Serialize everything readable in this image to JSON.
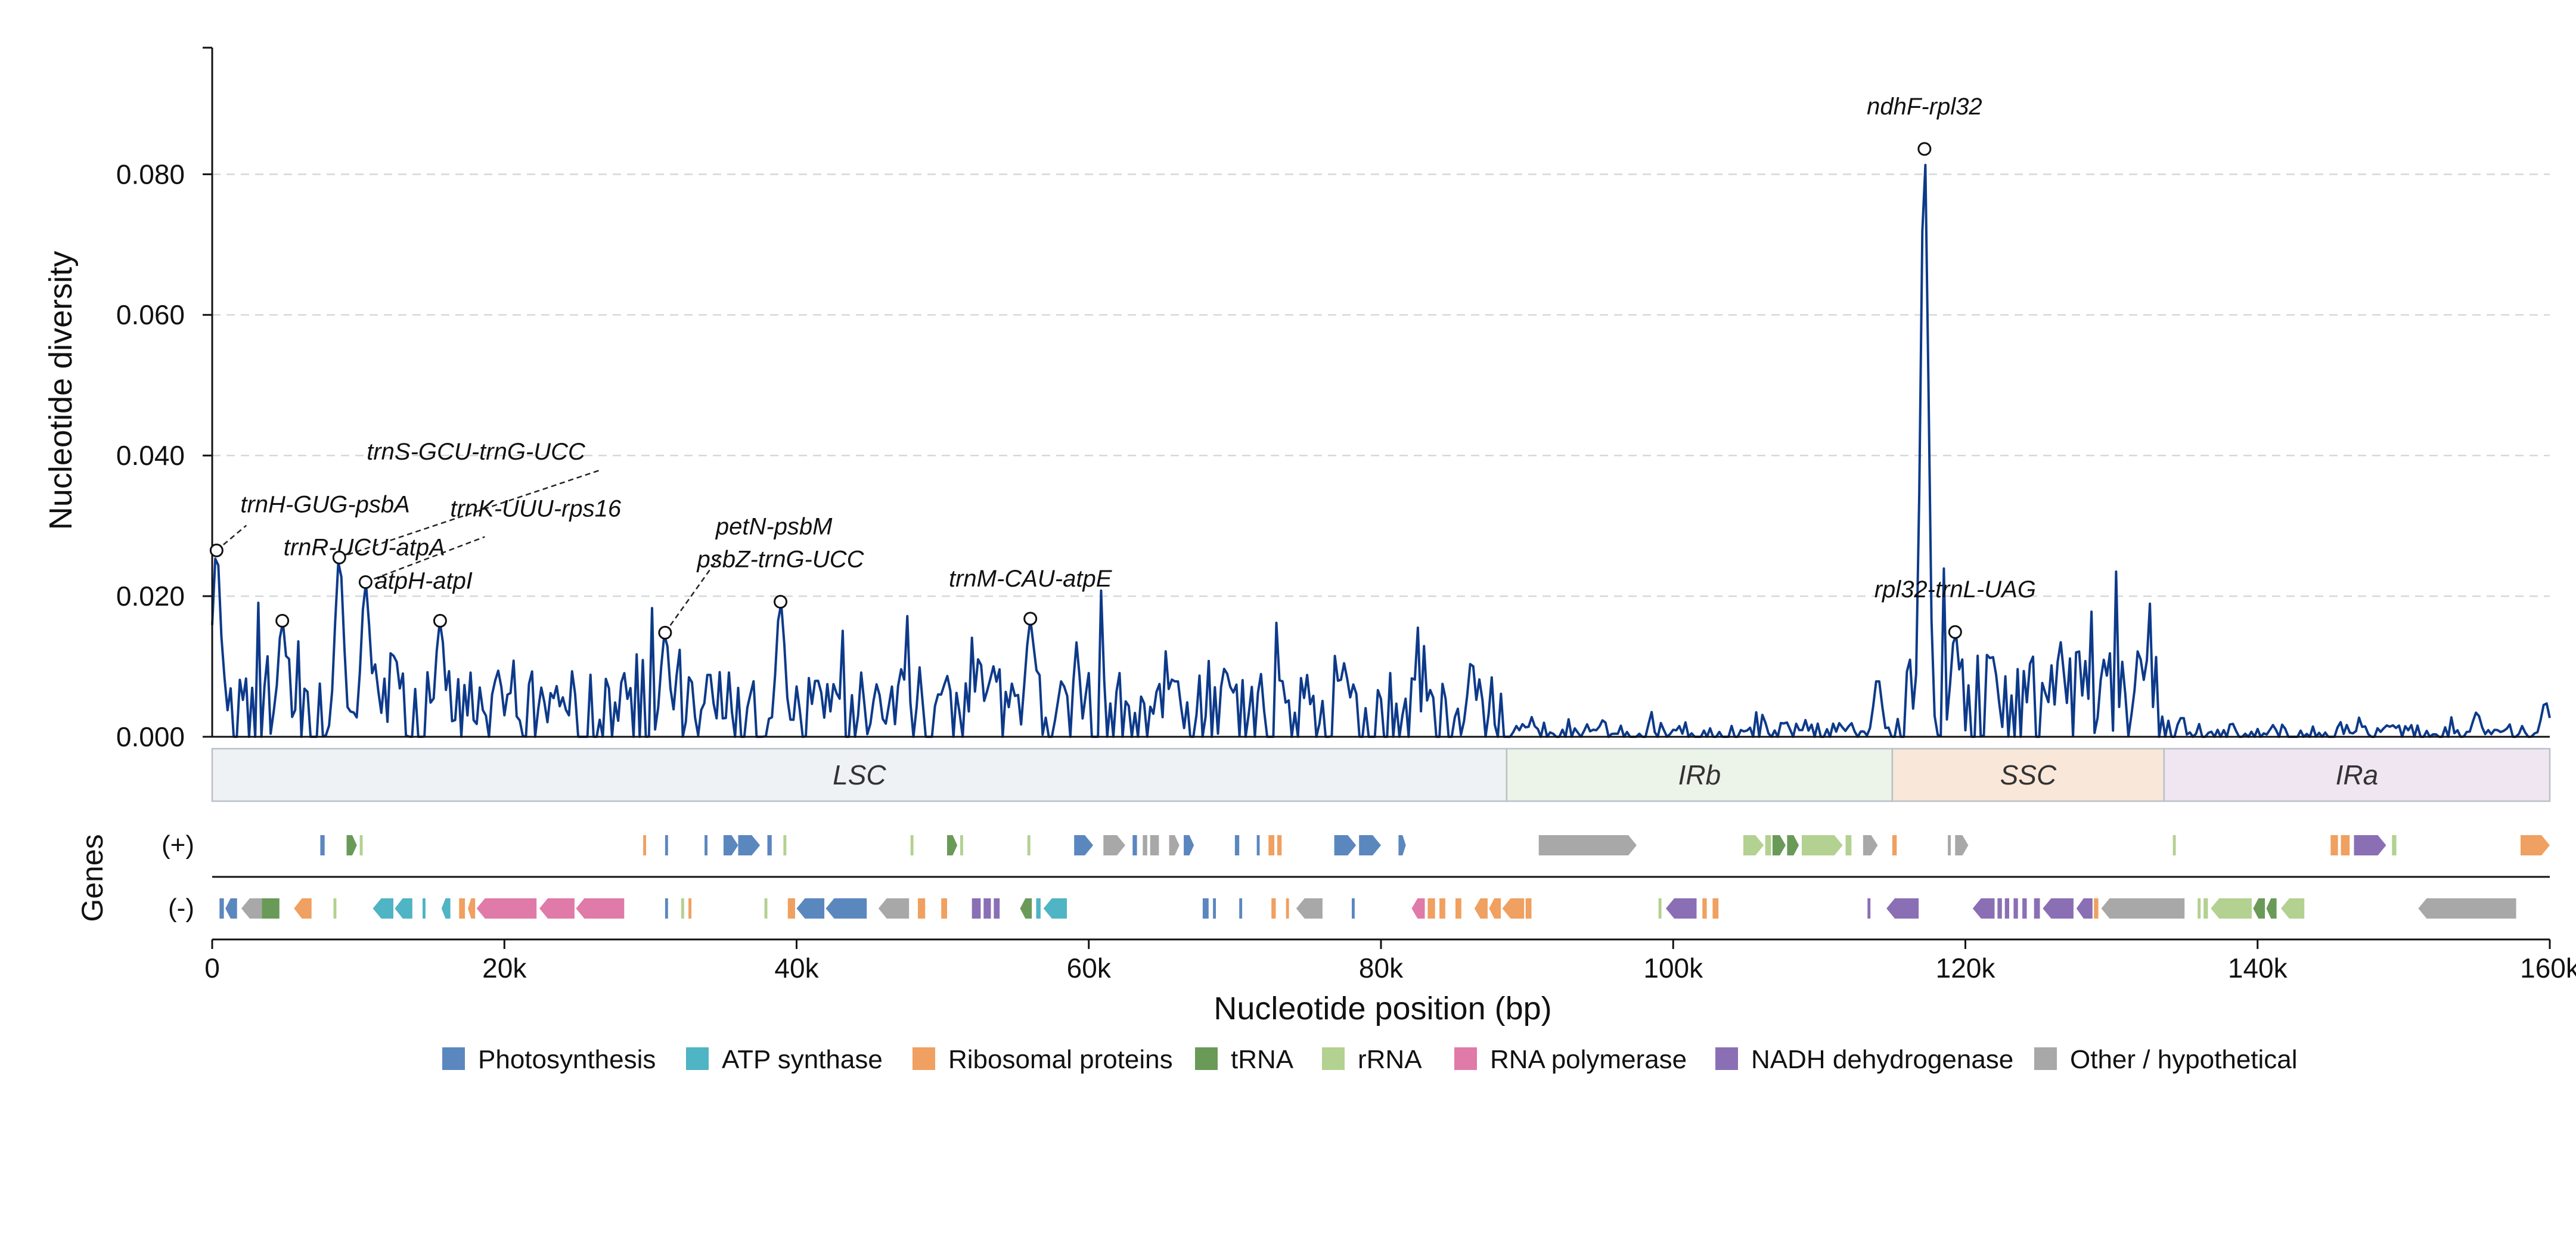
{
  "chart_data": {
    "type": "line",
    "xlabel": "Nucleotide position (bp)",
    "ylabel": "Nucleotide diversity",
    "genes_label": "Genes",
    "strand_labels": [
      "(+)",
      "(-)"
    ],
    "xlim": [
      0,
      160000
    ],
    "ylim": [
      0,
      0.098
    ],
    "x_ticks": [
      0,
      20000,
      40000,
      60000,
      80000,
      100000,
      120000,
      140000,
      160000
    ],
    "x_tick_labels": [
      "0",
      "20k",
      "40k",
      "60k",
      "80k",
      "100k",
      "120k",
      "140k",
      "160k"
    ],
    "y_ticks": [
      0,
      0.02,
      0.04,
      0.06,
      0.08
    ],
    "y_tick_labels": [
      "0.000",
      "0.020",
      "0.040",
      "0.060",
      "0.080"
    ],
    "grid": "horizontal dashed",
    "line_color": "#0d3a8a",
    "peaks": [
      {
        "label": "trnH-GUG-psbA",
        "x": 300,
        "y": 0.0265
      },
      {
        "label": "trnR-UCU-atpA",
        "x": 4800,
        "y": 0.0165
      },
      {
        "label": "trnS-GCU-trnG-UCC",
        "x": 8700,
        "y": 0.0255
      },
      {
        "label": "trnK-UUU-rps16",
        "x": 10500,
        "y": 0.022
      },
      {
        "label": "atpH-atpI",
        "x": 15600,
        "y": 0.0165
      },
      {
        "label": "petN-psbM",
        "x": 31000,
        "y": 0.0148
      },
      {
        "label": "psbZ-trnG-UCC",
        "x": 38900,
        "y": 0.0192
      },
      {
        "label": "trnM-CAU-atpE",
        "x": 56000,
        "y": 0.0168
      },
      {
        "label": "ndhF-rpl32",
        "x": 117200,
        "y": 0.0836
      },
      {
        "label": "rpl32-trnL-UAG",
        "x": 119300,
        "y": 0.0149
      }
    ],
    "regions": [
      {
        "name": "LSC",
        "start": 0,
        "end": 88600,
        "color": "#eef2f5"
      },
      {
        "name": "IRb",
        "start": 88600,
        "end": 115000,
        "color": "#ecf3e8"
      },
      {
        "name": "SSC",
        "start": 115000,
        "end": 133600,
        "color": "#f9e8d9"
      },
      {
        "name": "IRa",
        "start": 133600,
        "end": 160000,
        "color": "#f0e6f2"
      }
    ],
    "legend": [
      {
        "label": "Photosynthesis",
        "color": "#5b87bf"
      },
      {
        "label": "ATP synthase",
        "color": "#4fb4c4"
      },
      {
        "label": "Ribosomal proteins",
        "color": "#f0a060"
      },
      {
        "label": "tRNA",
        "color": "#6a9a58"
      },
      {
        "label": "rRNA",
        "color": "#b3d190"
      },
      {
        "label": "RNA polymerase",
        "color": "#e07aa8"
      },
      {
        "label": "NADH dehydrogenase",
        "color": "#8a6fb5"
      },
      {
        "label": "Other / hypothetical",
        "color": "#a8a8a8"
      }
    ],
    "genes_plus": [
      {
        "start": 7400,
        "end": 7700,
        "cat": 0,
        "arrow": false
      },
      {
        "start": 9200,
        "end": 9900,
        "cat": 3,
        "arrow": true
      },
      {
        "start": 10100,
        "end": 10300,
        "cat": 4,
        "arrow": false
      },
      {
        "start": 29500,
        "end": 29700,
        "cat": 2,
        "arrow": false
      },
      {
        "start": 31000,
        "end": 31200,
        "cat": 0,
        "arrow": false
      },
      {
        "start": 33700,
        "end": 33900,
        "cat": 0,
        "arrow": false
      },
      {
        "start": 35000,
        "end": 36000,
        "cat": 0,
        "arrow": true
      },
      {
        "start": 36000,
        "end": 37500,
        "cat": 0,
        "arrow": true
      },
      {
        "start": 38000,
        "end": 38300,
        "cat": 0,
        "arrow": false
      },
      {
        "start": 39100,
        "end": 39300,
        "cat": 4,
        "arrow": false
      },
      {
        "start": 47800,
        "end": 48000,
        "cat": 4,
        "arrow": false
      },
      {
        "start": 50300,
        "end": 51000,
        "cat": 3,
        "arrow": true
      },
      {
        "start": 51200,
        "end": 51400,
        "cat": 4,
        "arrow": false
      },
      {
        "start": 55800,
        "end": 56000,
        "cat": 4,
        "arrow": false
      },
      {
        "start": 59000,
        "end": 60300,
        "cat": 0,
        "arrow": true
      },
      {
        "start": 61000,
        "end": 62500,
        "cat": 7,
        "arrow": true
      },
      {
        "start": 63000,
        "end": 63300,
        "cat": 0,
        "arrow": false
      },
      {
        "start": 63700,
        "end": 64000,
        "cat": 7,
        "arrow": false
      },
      {
        "start": 64200,
        "end": 64800,
        "cat": 7,
        "arrow": false
      },
      {
        "start": 65500,
        "end": 66200,
        "cat": 7,
        "arrow": true
      },
      {
        "start": 66500,
        "end": 67200,
        "cat": 0,
        "arrow": true
      },
      {
        "start": 70000,
        "end": 70300,
        "cat": 0,
        "arrow": false
      },
      {
        "start": 71500,
        "end": 71700,
        "cat": 0,
        "arrow": false
      },
      {
        "start": 72300,
        "end": 72700,
        "cat": 2,
        "arrow": false
      },
      {
        "start": 72900,
        "end": 73200,
        "cat": 2,
        "arrow": false
      },
      {
        "start": 76800,
        "end": 78300,
        "cat": 0,
        "arrow": true
      },
      {
        "start": 78500,
        "end": 80000,
        "cat": 0,
        "arrow": true
      },
      {
        "start": 81200,
        "end": 81700,
        "cat": 0,
        "arrow": true
      },
      {
        "start": 90800,
        "end": 97500,
        "cat": 7,
        "arrow": true
      },
      {
        "start": 104800,
        "end": 106200,
        "cat": 4,
        "arrow": true
      },
      {
        "start": 106300,
        "end": 106700,
        "cat": 4,
        "arrow": false
      },
      {
        "start": 106800,
        "end": 107700,
        "cat": 3,
        "arrow": true
      },
      {
        "start": 107800,
        "end": 108600,
        "cat": 3,
        "arrow": true
      },
      {
        "start": 108800,
        "end": 111600,
        "cat": 4,
        "arrow": true
      },
      {
        "start": 111800,
        "end": 112200,
        "cat": 4,
        "arrow": false
      },
      {
        "start": 113000,
        "end": 114000,
        "cat": 7,
        "arrow": true
      },
      {
        "start": 115000,
        "end": 115300,
        "cat": 2,
        "arrow": false
      },
      {
        "start": 118800,
        "end": 119000,
        "cat": 7,
        "arrow": false
      },
      {
        "start": 119300,
        "end": 120200,
        "cat": 7,
        "arrow": true
      },
      {
        "start": 134200,
        "end": 134400,
        "cat": 4,
        "arrow": false
      },
      {
        "start": 145000,
        "end": 145500,
        "cat": 2,
        "arrow": false
      },
      {
        "start": 145700,
        "end": 146300,
        "cat": 2,
        "arrow": false
      },
      {
        "start": 146600,
        "end": 148800,
        "cat": 6,
        "arrow": true
      },
      {
        "start": 149200,
        "end": 149500,
        "cat": 4,
        "arrow": false
      },
      {
        "start": 158000,
        "end": 160000,
        "cat": 2,
        "arrow": true
      }
    ],
    "genes_minus": [
      {
        "start": 500,
        "end": 800,
        "cat": 0,
        "arrow": false
      },
      {
        "start": 900,
        "end": 1700,
        "cat": 0,
        "arrow": true
      },
      {
        "start": 2000,
        "end": 3400,
        "cat": 7,
        "arrow": true
      },
      {
        "start": 3400,
        "end": 4600,
        "cat": 3,
        "arrow": false
      },
      {
        "start": 5600,
        "end": 6800,
        "cat": 2,
        "arrow": true
      },
      {
        "start": 8300,
        "end": 8500,
        "cat": 4,
        "arrow": false
      },
      {
        "start": 11000,
        "end": 12400,
        "cat": 1,
        "arrow": true
      },
      {
        "start": 12500,
        "end": 13700,
        "cat": 1,
        "arrow": true
      },
      {
        "start": 14400,
        "end": 14600,
        "cat": 1,
        "arrow": false
      },
      {
        "start": 15700,
        "end": 16300,
        "cat": 1,
        "arrow": true
      },
      {
        "start": 16900,
        "end": 17300,
        "cat": 2,
        "arrow": false
      },
      {
        "start": 17500,
        "end": 18000,
        "cat": 2,
        "arrow": true
      },
      {
        "start": 18100,
        "end": 22200,
        "cat": 5,
        "arrow": true
      },
      {
        "start": 22400,
        "end": 24800,
        "cat": 5,
        "arrow": true
      },
      {
        "start": 24900,
        "end": 28200,
        "cat": 5,
        "arrow": true
      },
      {
        "start": 31000,
        "end": 31200,
        "cat": 0,
        "arrow": false
      },
      {
        "start": 32100,
        "end": 32300,
        "cat": 4,
        "arrow": false
      },
      {
        "start": 32600,
        "end": 32800,
        "cat": 2,
        "arrow": false
      },
      {
        "start": 37800,
        "end": 38000,
        "cat": 4,
        "arrow": false
      },
      {
        "start": 39400,
        "end": 39900,
        "cat": 2,
        "arrow": false
      },
      {
        "start": 40000,
        "end": 41900,
        "cat": 0,
        "arrow": true
      },
      {
        "start": 42000,
        "end": 44800,
        "cat": 0,
        "arrow": true
      },
      {
        "start": 45600,
        "end": 47700,
        "cat": 7,
        "arrow": true
      },
      {
        "start": 48300,
        "end": 48800,
        "cat": 2,
        "arrow": false
      },
      {
        "start": 49900,
        "end": 50300,
        "cat": 2,
        "arrow": false
      },
      {
        "start": 52000,
        "end": 52600,
        "cat": 6,
        "arrow": false
      },
      {
        "start": 52800,
        "end": 53300,
        "cat": 6,
        "arrow": false
      },
      {
        "start": 53500,
        "end": 53900,
        "cat": 6,
        "arrow": false
      },
      {
        "start": 55300,
        "end": 56100,
        "cat": 3,
        "arrow": true
      },
      {
        "start": 56400,
        "end": 56700,
        "cat": 1,
        "arrow": false
      },
      {
        "start": 56900,
        "end": 58500,
        "cat": 1,
        "arrow": true
      },
      {
        "start": 67800,
        "end": 68200,
        "cat": 0,
        "arrow": false
      },
      {
        "start": 68500,
        "end": 68700,
        "cat": 0,
        "arrow": false
      },
      {
        "start": 70300,
        "end": 70500,
        "cat": 0,
        "arrow": false
      },
      {
        "start": 72500,
        "end": 72800,
        "cat": 2,
        "arrow": false
      },
      {
        "start": 73500,
        "end": 73700,
        "cat": 2,
        "arrow": false
      },
      {
        "start": 74200,
        "end": 76000,
        "cat": 7,
        "arrow": true
      },
      {
        "start": 78000,
        "end": 78200,
        "cat": 0,
        "arrow": false
      },
      {
        "start": 82100,
        "end": 83000,
        "cat": 5,
        "arrow": true
      },
      {
        "start": 83200,
        "end": 83700,
        "cat": 2,
        "arrow": false
      },
      {
        "start": 84000,
        "end": 84400,
        "cat": 2,
        "arrow": false
      },
      {
        "start": 85100,
        "end": 85500,
        "cat": 2,
        "arrow": false
      },
      {
        "start": 86400,
        "end": 87300,
        "cat": 2,
        "arrow": true
      },
      {
        "start": 87400,
        "end": 88200,
        "cat": 2,
        "arrow": true
      },
      {
        "start": 88300,
        "end": 89800,
        "cat": 2,
        "arrow": true
      },
      {
        "start": 89900,
        "end": 90300,
        "cat": 2,
        "arrow": false
      },
      {
        "start": 99000,
        "end": 99200,
        "cat": 4,
        "arrow": false
      },
      {
        "start": 99500,
        "end": 101600,
        "cat": 6,
        "arrow": true
      },
      {
        "start": 102000,
        "end": 102300,
        "cat": 2,
        "arrow": false
      },
      {
        "start": 102700,
        "end": 103100,
        "cat": 2,
        "arrow": false
      },
      {
        "start": 113300,
        "end": 113500,
        "cat": 6,
        "arrow": false
      },
      {
        "start": 114600,
        "end": 116800,
        "cat": 6,
        "arrow": true
      },
      {
        "start": 120500,
        "end": 122000,
        "cat": 6,
        "arrow": true
      },
      {
        "start": 122200,
        "end": 122500,
        "cat": 6,
        "arrow": false
      },
      {
        "start": 122700,
        "end": 123000,
        "cat": 6,
        "arrow": false
      },
      {
        "start": 123300,
        "end": 123600,
        "cat": 6,
        "arrow": false
      },
      {
        "start": 123900,
        "end": 124200,
        "cat": 6,
        "arrow": false
      },
      {
        "start": 124700,
        "end": 125100,
        "cat": 6,
        "arrow": false
      },
      {
        "start": 125300,
        "end": 127400,
        "cat": 6,
        "arrow": true
      },
      {
        "start": 127600,
        "end": 128700,
        "cat": 6,
        "arrow": true
      },
      {
        "start": 128800,
        "end": 129100,
        "cat": 2,
        "arrow": false
      },
      {
        "start": 129300,
        "end": 135000,
        "cat": 7,
        "arrow": true
      },
      {
        "start": 135900,
        "end": 136100,
        "cat": 4,
        "arrow": false
      },
      {
        "start": 136300,
        "end": 136600,
        "cat": 4,
        "arrow": false
      },
      {
        "start": 136800,
        "end": 139600,
        "cat": 4,
        "arrow": true
      },
      {
        "start": 139700,
        "end": 140500,
        "cat": 3,
        "arrow": true
      },
      {
        "start": 140600,
        "end": 141300,
        "cat": 3,
        "arrow": true
      },
      {
        "start": 141600,
        "end": 143200,
        "cat": 4,
        "arrow": true
      },
      {
        "start": 151000,
        "end": 157700,
        "cat": 7,
        "arrow": true
      }
    ]
  }
}
